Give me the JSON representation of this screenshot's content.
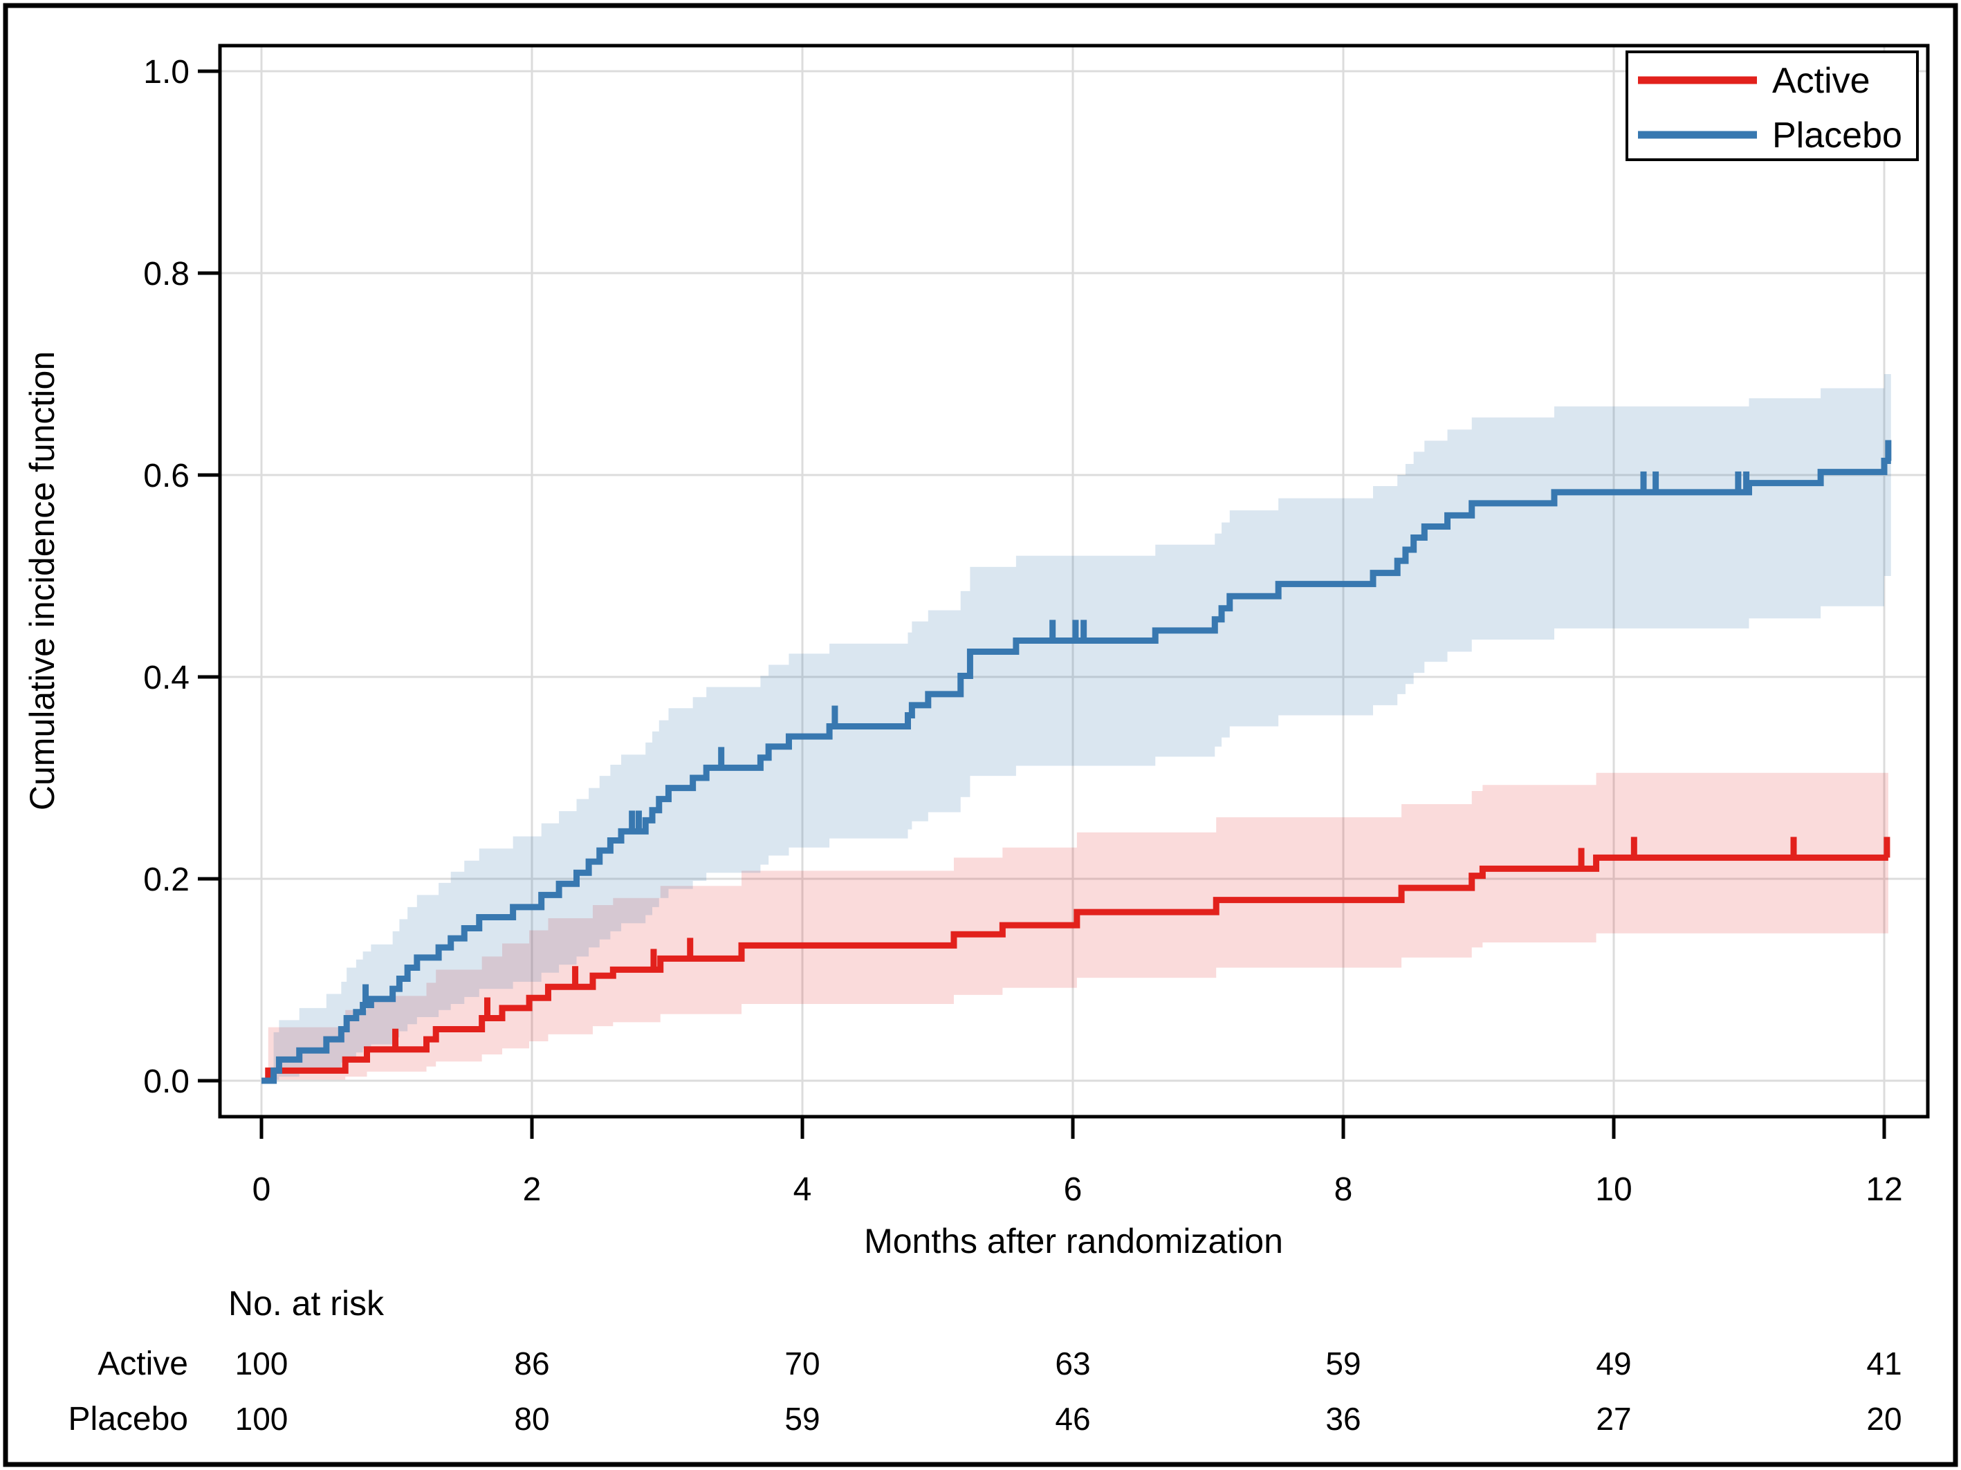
{
  "figure": {
    "y_axis": {
      "title": "Cumulative incidence function",
      "tick_labels": [
        "0.0",
        "0.2",
        "0.4",
        "0.6",
        "0.8",
        "1.0"
      ],
      "tick_values": [
        0.0,
        0.2,
        0.4,
        0.6,
        0.8,
        1.0
      ]
    },
    "x_axis": {
      "title": "Months after randomization",
      "tick_labels": [
        "0",
        "2",
        "4",
        "6",
        "8",
        "10",
        "12"
      ],
      "tick_values": [
        0,
        2,
        4,
        6,
        8,
        10,
        12
      ]
    },
    "legend": {
      "items": [
        {
          "label": "Active",
          "color": "#e2211c"
        },
        {
          "label": "Placebo",
          "color": "#3878b0"
        }
      ]
    },
    "risk_table": {
      "header": "No. at risk",
      "time_points": [
        0,
        2,
        4,
        6,
        8,
        10,
        12
      ],
      "rows": [
        {
          "label": "Active",
          "counts": [
            100,
            86,
            70,
            63,
            59,
            49,
            41
          ]
        },
        {
          "label": "Placebo",
          "counts": [
            100,
            80,
            59,
            46,
            36,
            27,
            20
          ]
        }
      ]
    },
    "colors": {
      "active_line": "#e2211c",
      "placebo_line": "#3878b0",
      "active_band": "rgba(226,33,28,0.16)",
      "placebo_band": "rgba(56,120,176,0.19)",
      "gridline": "#dcdcdc",
      "axis": "#000000",
      "background": "#ffffff"
    }
  },
  "chart_data": {
    "type": "line",
    "subtype": "step-cumulative-incidence",
    "title": "",
    "xlabel": "Months after randomization",
    "ylabel": "Cumulative incidence function",
    "xlim": [
      0,
      12
    ],
    "ylim": [
      0,
      1.0
    ],
    "grid": true,
    "legend_position": "top-right",
    "series": [
      {
        "name": "Active",
        "color": "#e2211c",
        "band_color": "rgba(226,33,28,0.16)",
        "start_t": 0.04,
        "end_t": 12.03,
        "steps": [
          [
            0.05,
            0.01,
            0.001,
            0.053
          ],
          [
            0.62,
            0.021,
            0.004,
            0.07
          ],
          [
            0.78,
            0.031,
            0.009,
            0.084
          ],
          [
            1.22,
            0.041,
            0.014,
            0.097
          ],
          [
            1.29,
            0.051,
            0.019,
            0.11
          ],
          [
            1.63,
            0.062,
            0.026,
            0.123
          ],
          [
            1.78,
            0.072,
            0.032,
            0.136
          ],
          [
            1.98,
            0.082,
            0.039,
            0.149
          ],
          [
            2.12,
            0.093,
            0.046,
            0.161
          ],
          [
            2.45,
            0.104,
            0.054,
            0.174
          ],
          [
            2.6,
            0.11,
            0.058,
            0.181
          ],
          [
            2.95,
            0.121,
            0.066,
            0.193
          ],
          [
            3.55,
            0.134,
            0.076,
            0.208
          ],
          [
            5.12,
            0.145,
            0.085,
            0.221
          ],
          [
            5.48,
            0.154,
            0.092,
            0.231
          ],
          [
            6.03,
            0.167,
            0.102,
            0.246
          ],
          [
            7.06,
            0.179,
            0.112,
            0.261
          ],
          [
            8.43,
            0.191,
            0.122,
            0.274
          ],
          [
            8.95,
            0.203,
            0.132,
            0.287
          ],
          [
            9.03,
            0.21,
            0.137,
            0.293
          ],
          [
            9.87,
            0.221,
            0.146,
            0.305
          ]
        ],
        "censor_times": [
          0.99,
          1.67,
          2.32,
          2.9,
          3.17,
          9.76,
          10.15,
          11.33,
          12.02
        ]
      },
      {
        "name": "Placebo",
        "color": "#3878b0",
        "band_color": "rgba(56,120,176,0.19)",
        "start_t": 0.0,
        "end_t": 12.05,
        "steps": [
          [
            0.09,
            0.01,
            0.001,
            0.048
          ],
          [
            0.13,
            0.021,
            0.004,
            0.06
          ],
          [
            0.28,
            0.03,
            0.008,
            0.072
          ],
          [
            0.48,
            0.041,
            0.013,
            0.086
          ],
          [
            0.59,
            0.051,
            0.018,
            0.098
          ],
          [
            0.63,
            0.062,
            0.024,
            0.112
          ],
          [
            0.7,
            0.068,
            0.028,
            0.12
          ],
          [
            0.75,
            0.075,
            0.032,
            0.128
          ],
          [
            0.81,
            0.081,
            0.036,
            0.135
          ],
          [
            0.97,
            0.091,
            0.043,
            0.148
          ],
          [
            1.02,
            0.101,
            0.049,
            0.16
          ],
          [
            1.08,
            0.112,
            0.056,
            0.172
          ],
          [
            1.15,
            0.122,
            0.063,
            0.184
          ],
          [
            1.31,
            0.132,
            0.07,
            0.196
          ],
          [
            1.4,
            0.141,
            0.076,
            0.207
          ],
          [
            1.5,
            0.151,
            0.083,
            0.218
          ],
          [
            1.61,
            0.162,
            0.091,
            0.23
          ],
          [
            1.86,
            0.172,
            0.098,
            0.242
          ],
          [
            2.07,
            0.184,
            0.107,
            0.255
          ],
          [
            2.2,
            0.195,
            0.115,
            0.267
          ],
          [
            2.33,
            0.206,
            0.123,
            0.279
          ],
          [
            2.42,
            0.217,
            0.132,
            0.29
          ],
          [
            2.5,
            0.228,
            0.14,
            0.302
          ],
          [
            2.58,
            0.238,
            0.148,
            0.313
          ],
          [
            2.66,
            0.247,
            0.156,
            0.323
          ],
          [
            2.84,
            0.258,
            0.164,
            0.335
          ],
          [
            2.89,
            0.268,
            0.172,
            0.346
          ],
          [
            2.94,
            0.279,
            0.181,
            0.357
          ],
          [
            3.01,
            0.29,
            0.19,
            0.369
          ],
          [
            3.19,
            0.3,
            0.198,
            0.38
          ],
          [
            3.29,
            0.31,
            0.206,
            0.39
          ],
          [
            3.69,
            0.32,
            0.214,
            0.401
          ],
          [
            3.75,
            0.331,
            0.223,
            0.412
          ],
          [
            3.9,
            0.341,
            0.231,
            0.423
          ],
          [
            4.2,
            0.351,
            0.24,
            0.433
          ],
          [
            4.78,
            0.362,
            0.249,
            0.444
          ],
          [
            4.81,
            0.372,
            0.257,
            0.455
          ],
          [
            4.93,
            0.383,
            0.266,
            0.466
          ],
          [
            5.17,
            0.401,
            0.281,
            0.485
          ],
          [
            5.24,
            0.425,
            0.302,
            0.509
          ],
          [
            5.58,
            0.436,
            0.312,
            0.52
          ],
          [
            6.61,
            0.446,
            0.321,
            0.531
          ],
          [
            7.05,
            0.457,
            0.331,
            0.542
          ],
          [
            7.1,
            0.468,
            0.34,
            0.553
          ],
          [
            7.16,
            0.48,
            0.351,
            0.565
          ],
          [
            7.52,
            0.492,
            0.362,
            0.577
          ],
          [
            8.22,
            0.503,
            0.372,
            0.589
          ],
          [
            8.4,
            0.515,
            0.383,
            0.6
          ],
          [
            8.46,
            0.526,
            0.393,
            0.611
          ],
          [
            8.52,
            0.538,
            0.404,
            0.623
          ],
          [
            8.6,
            0.549,
            0.415,
            0.634
          ],
          [
            8.77,
            0.56,
            0.425,
            0.645
          ],
          [
            8.95,
            0.572,
            0.437,
            0.657
          ],
          [
            9.56,
            0.583,
            0.448,
            0.668
          ],
          [
            11.0,
            0.592,
            0.458,
            0.676
          ],
          [
            11.53,
            0.603,
            0.47,
            0.686
          ],
          [
            12.0,
            0.614,
            0.5,
            0.7
          ]
        ],
        "censor_times": [
          0.77,
          2.74,
          2.79,
          3.4,
          4.24,
          5.85,
          6.02,
          6.08,
          10.22,
          10.31,
          10.92,
          10.98,
          12.03
        ]
      }
    ]
  }
}
